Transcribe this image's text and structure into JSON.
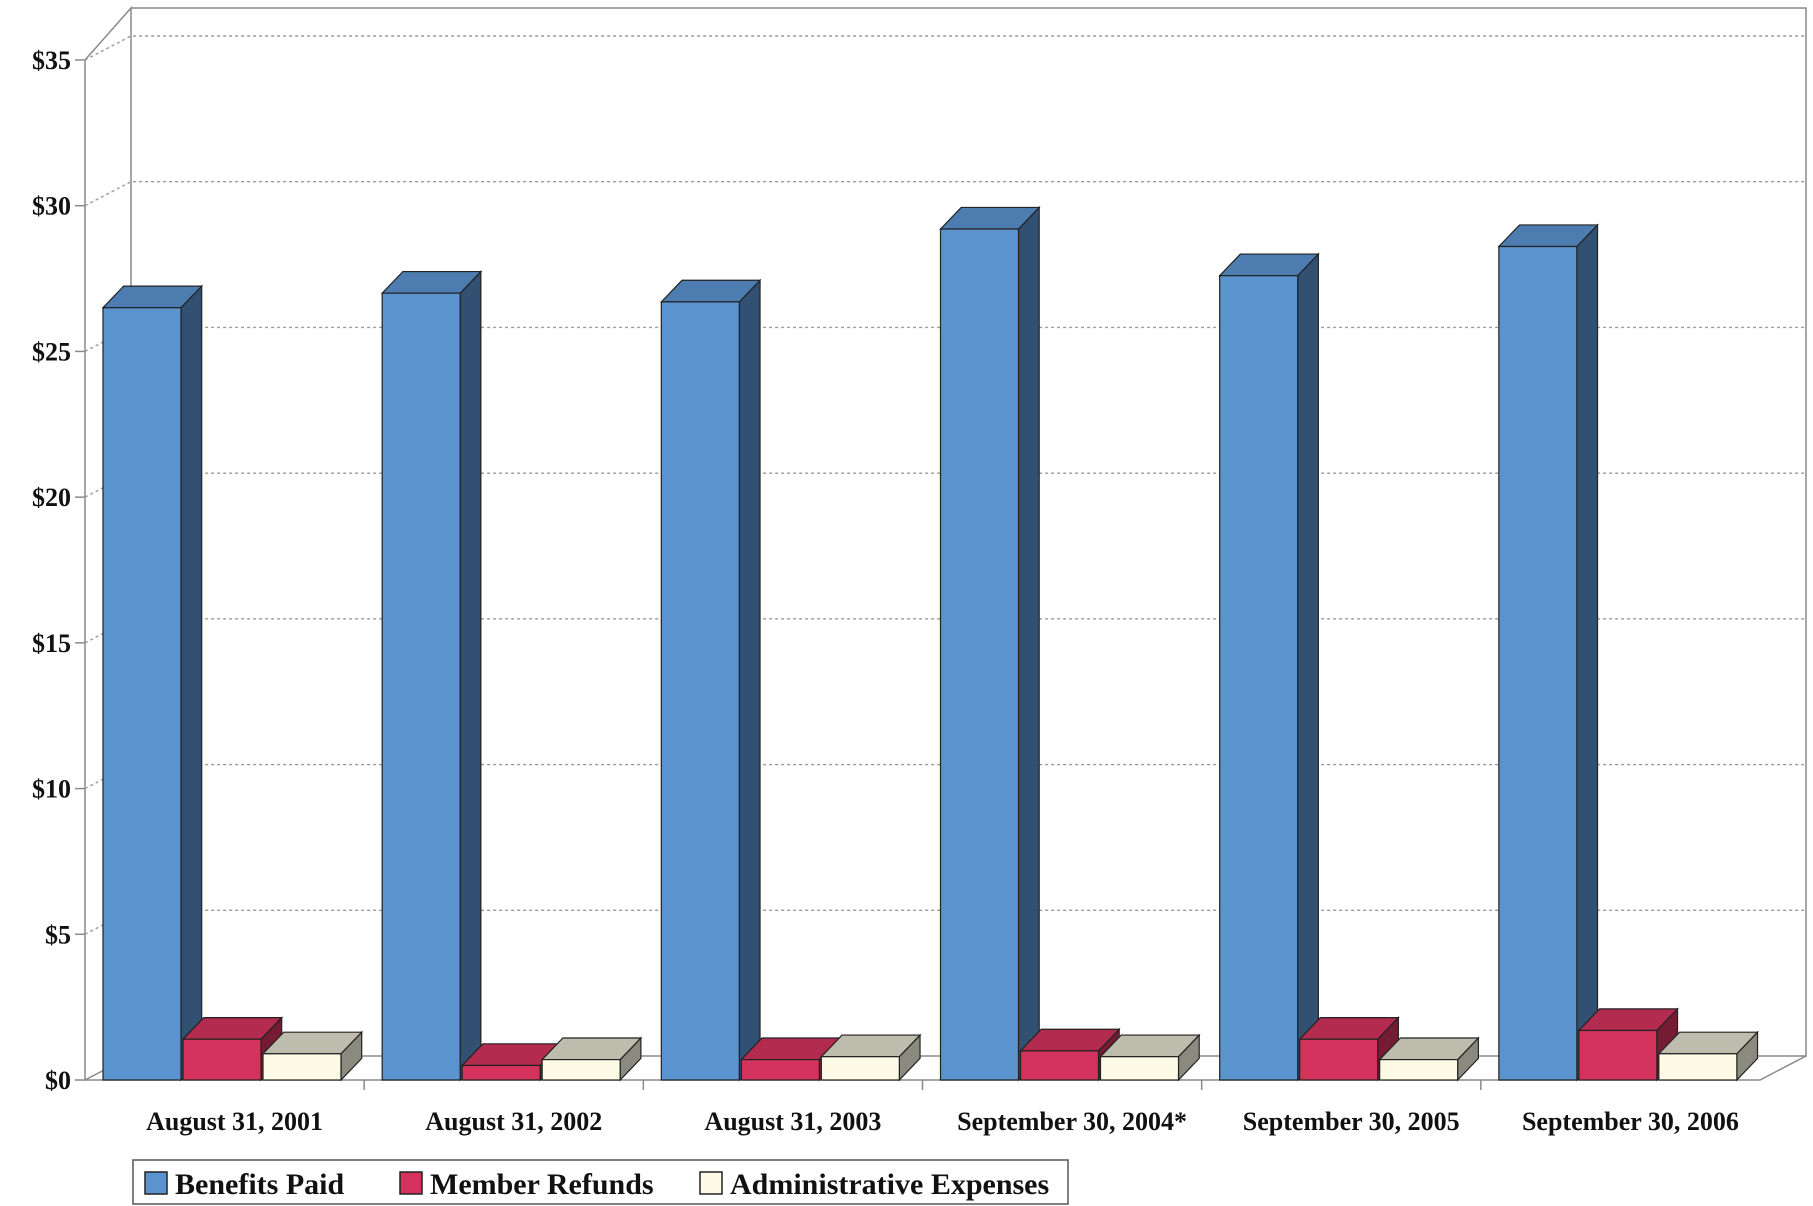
{
  "chart_data": {
    "type": "bar",
    "categories": [
      "August 31, 2001",
      "August 31, 2002",
      "August 31, 2003",
      "September 30, 2004*",
      "September 30, 2005",
      "September 30, 2006"
    ],
    "series": [
      {
        "name": "Benefits Paid",
        "values": [
          26.5,
          27.0,
          26.7,
          29.2,
          27.6,
          28.6
        ],
        "color": "#5b93cf"
      },
      {
        "name": "Member Refunds",
        "values": [
          1.4,
          0.5,
          0.7,
          1.0,
          1.4,
          1.7
        ],
        "color": "#d2325c"
      },
      {
        "name": "Administrative Expenses",
        "values": [
          0.9,
          0.7,
          0.8,
          0.8,
          0.7,
          0.9
        ],
        "color": "#fdfbe6"
      }
    ],
    "yticks": [
      "$0",
      "$5",
      "$10",
      "$15",
      "$20",
      "$25",
      "$30",
      "$35"
    ],
    "ylim": [
      0,
      35
    ],
    "grid": true,
    "legend": "bottom",
    "title": "",
    "xlabel": "",
    "ylabel": ""
  }
}
